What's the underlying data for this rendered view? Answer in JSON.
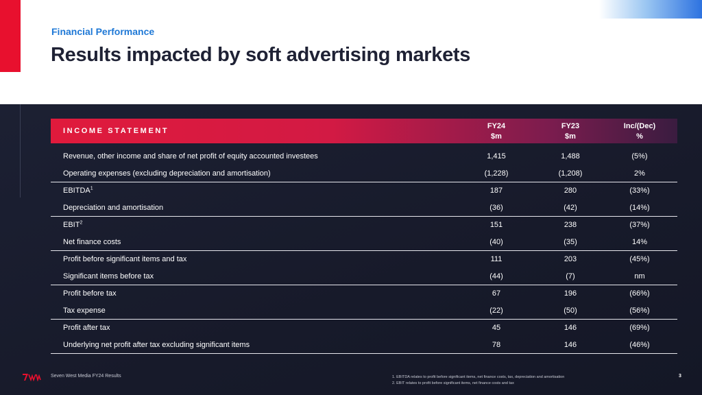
{
  "header": {
    "section_label": "Financial Performance",
    "title": "Results impacted by soft advertising markets"
  },
  "table": {
    "heading": "INCOME STATEMENT",
    "columns": [
      {
        "line1": "FY24",
        "line2": "$m"
      },
      {
        "line1": "FY23",
        "line2": "$m"
      },
      {
        "line1": "Inc/(Dec)",
        "line2": "%"
      }
    ],
    "rows": [
      {
        "label": "Revenue, other income and share of net profit of equity accounted investees",
        "sup": "",
        "fy24": "1,415",
        "fy23": "1,488",
        "change": "(5%)"
      },
      {
        "label": "Operating expenses (excluding depreciation and amortisation)",
        "sup": "",
        "fy24": "(1,228)",
        "fy23": "(1,208)",
        "change": "2%"
      },
      {
        "label": "EBITDA",
        "sup": "1",
        "fy24": "187",
        "fy23": "280",
        "change": "(33%)"
      },
      {
        "label": "Depreciation and amortisation",
        "sup": "",
        "fy24": "(36)",
        "fy23": "(42)",
        "change": "(14%)"
      },
      {
        "label": "EBIT",
        "sup": "2",
        "fy24": "151",
        "fy23": "238",
        "change": "(37%)"
      },
      {
        "label": "Net finance costs",
        "sup": "",
        "fy24": "(40)",
        "fy23": "(35)",
        "change": "14%"
      },
      {
        "label": "Profit before significant items and tax",
        "sup": "",
        "fy24": "111",
        "fy23": "203",
        "change": "(45%)"
      },
      {
        "label": "Significant items before tax",
        "sup": "",
        "fy24": "(44)",
        "fy23": "(7)",
        "change": "nm"
      },
      {
        "label": "Profit before tax",
        "sup": "",
        "fy24": "67",
        "fy23": "196",
        "change": "(66%)"
      },
      {
        "label": "Tax expense",
        "sup": "",
        "fy24": "(22)",
        "fy23": "(50)",
        "change": "(56%)"
      },
      {
        "label": "Profit after tax",
        "sup": "",
        "fy24": "45",
        "fy23": "146",
        "change": "(69%)"
      },
      {
        "label": "Underlying net profit after tax excluding significant items",
        "sup": "",
        "fy24": "78",
        "fy23": "146",
        "change": "(46%)"
      }
    ]
  },
  "footer": {
    "org": "Seven West Media  FY24 Results",
    "footnote1": "1. EBITDA relates to profit before significant items, net finance costs, tax, depreciation and amortisation",
    "footnote2": "2. EBIT relates to profit before significant items, net finance costs and tax",
    "page_number": "3"
  },
  "colors": {
    "accent_red": "#e8102e",
    "accent_blue": "#1e78d6",
    "title_navy": "#1f2235",
    "dark_bg": "#1a1d2e"
  },
  "icons": {
    "logo": "seven-west-media-logo"
  }
}
